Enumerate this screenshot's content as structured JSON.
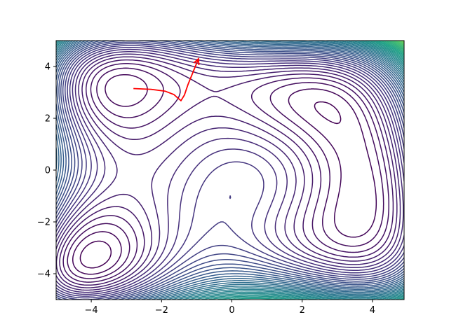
{
  "chart_data": {
    "type": "contour",
    "title": "",
    "xlabel": "",
    "ylabel": "",
    "xlim": [
      -5,
      4.9
    ],
    "ylim": [
      -5,
      5
    ],
    "x_ticks": [
      -4,
      -2,
      0,
      2,
      4
    ],
    "y_ticks": [
      -4,
      -2,
      0,
      2,
      4
    ],
    "x_tick_labels": [
      "−4",
      "−2",
      "0",
      "2",
      "4"
    ],
    "y_tick_labels": [
      "−4",
      "−2",
      "0",
      "2",
      "4"
    ],
    "function": "(x^2 + y - 11)^2 + (x + y^2 - 7)^2 + 20*sin(x)*cos(y)  (approx. reconstruction)",
    "colormap": "viridis",
    "grid": false,
    "contour_levels": {
      "start": 0,
      "step": 18,
      "count": 60
    },
    "colormap_stops": [
      "#440154",
      "#46327e",
      "#365c8d",
      "#277f8e",
      "#1fa187",
      "#4ac16d",
      "#a0da39",
      "#fde725"
    ],
    "path": {
      "color": "#ff0000",
      "points": [
        [
          -2.8,
          3.15
        ],
        [
          -2.3,
          3.12
        ],
        [
          -1.9,
          3.05
        ],
        [
          -1.65,
          2.92
        ],
        [
          -1.55,
          2.8
        ],
        [
          -1.45,
          2.68
        ],
        [
          -1.35,
          2.9
        ],
        [
          -1.25,
          3.3
        ],
        [
          -1.1,
          3.8
        ],
        [
          -0.95,
          4.3
        ]
      ],
      "arrow_at_end": true
    }
  }
}
